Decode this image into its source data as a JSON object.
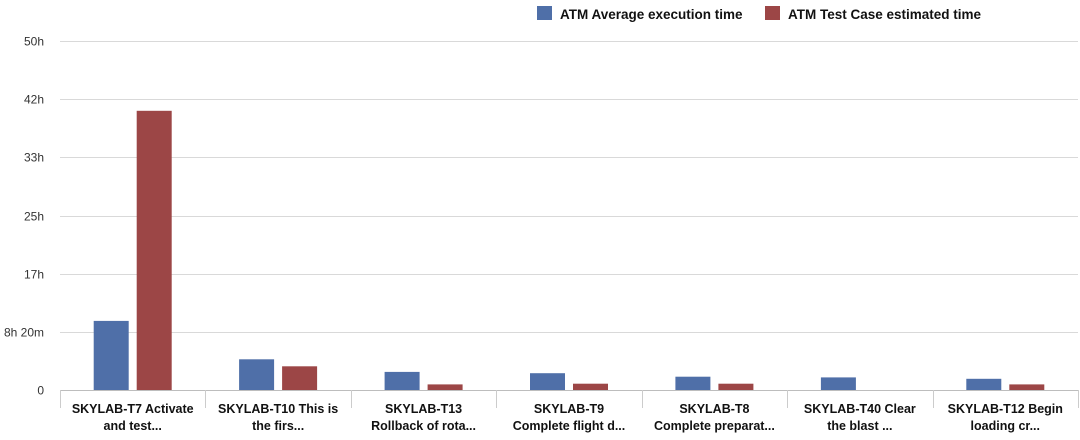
{
  "chart_data": {
    "type": "bar",
    "title": "",
    "xlabel": "",
    "ylabel": "",
    "categories": [
      [
        "SKYLAB-T7 Activate",
        "and test..."
      ],
      [
        "SKYLAB-T10 This is",
        "the firs..."
      ],
      [
        "SKYLAB-T13",
        "Rollback of rota..."
      ],
      [
        "SKYLAB-T9",
        "Complete flight d..."
      ],
      [
        "SKYLAB-T8",
        "Complete preparat..."
      ],
      [
        "SKYLAB-T40 Clear",
        "the blast ..."
      ],
      [
        "SKYLAB-T12 Begin",
        "loading cr..."
      ]
    ],
    "y_unit": "hours",
    "ylim": [
      0,
      50
    ],
    "y_ticks": [
      {
        "value": 0,
        "label": "0"
      },
      {
        "value": 8.333,
        "label": "8h 20m"
      },
      {
        "value": 16.667,
        "label": "17h"
      },
      {
        "value": 25,
        "label": "25h"
      },
      {
        "value": 33.333,
        "label": "33h"
      },
      {
        "value": 41.667,
        "label": "42h"
      },
      {
        "value": 50,
        "label": "50h"
      }
    ],
    "grid": true,
    "legend_position": "top-right",
    "series": [
      {
        "name": "ATM Average execution time",
        "color": "#4f6fa8",
        "values": [
          9.9,
          4.4,
          2.6,
          2.4,
          1.9,
          1.8,
          1.6
        ]
      },
      {
        "name": "ATM Test Case estimated time",
        "color": "#9c4646",
        "values": [
          40.0,
          3.4,
          0.8,
          0.9,
          0.9,
          0.0,
          0.8
        ]
      }
    ]
  }
}
